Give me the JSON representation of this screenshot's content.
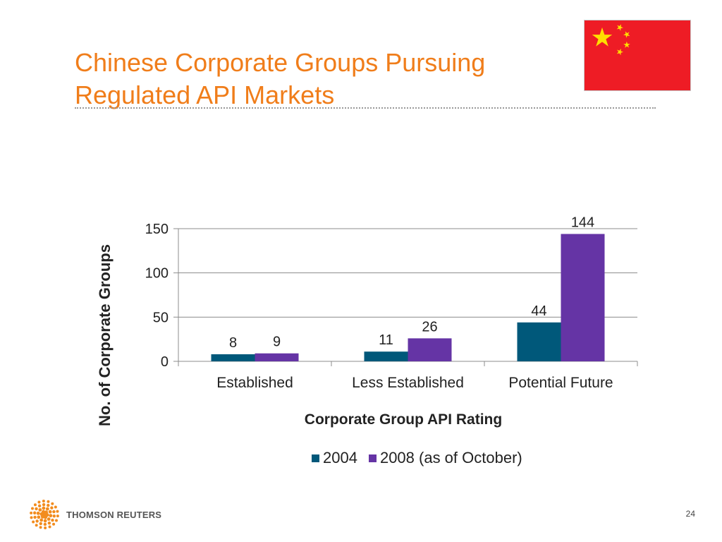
{
  "slide": {
    "title_lines": [
      "Chinese Corporate Groups Pursuing",
      "Regulated API Markets"
    ],
    "page_number": "24",
    "brand": "THOMSON REUTERS"
  },
  "colors": {
    "title": "#f07d1a",
    "series_2004": "#00587a",
    "series_2008": "#6534a5"
  },
  "icons": {
    "flag": "china-flag-icon",
    "logo": "thomson-reuters-logo-icon"
  },
  "chart_data": {
    "type": "bar",
    "title": "",
    "xlabel": "Corporate Group API Rating",
    "ylabel": "No. of Corporate Groups",
    "categories": [
      "Established",
      "Less Established",
      "Potential Future"
    ],
    "series": [
      {
        "name": "2004",
        "values": [
          8,
          11,
          44
        ],
        "color": "#00587a"
      },
      {
        "name": "2008 (as of October)",
        "values": [
          9,
          26,
          144
        ],
        "color": "#6534a5"
      }
    ],
    "ylim": [
      0,
      150
    ],
    "yticks": [
      0,
      50,
      100,
      150
    ],
    "grid": true,
    "legend": "bottom"
  }
}
